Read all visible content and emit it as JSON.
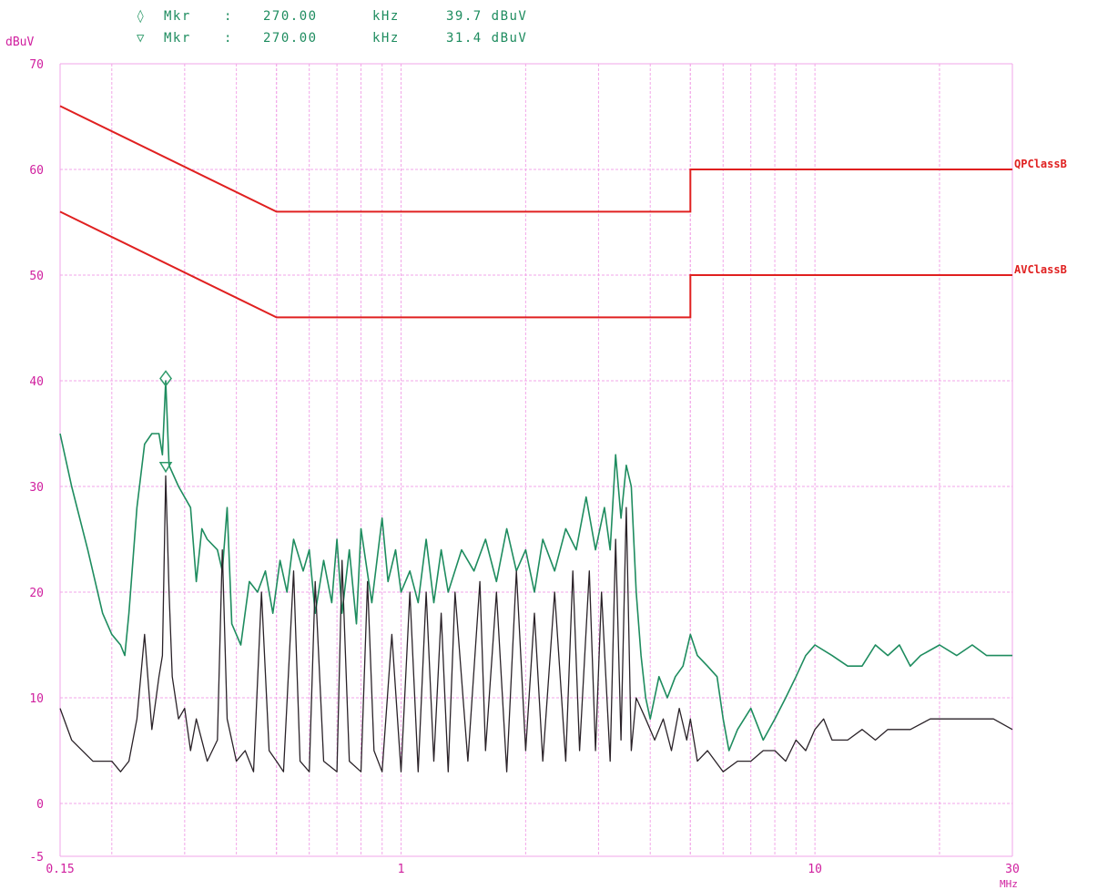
{
  "header": {
    "markers": [
      {
        "symbol": "◊",
        "label": "Mkr",
        "sep": ":",
        "freq": "270.00",
        "unit": "kHz",
        "level": "39.7 dBuV"
      },
      {
        "symbol": "▽",
        "label": "Mkr",
        "sep": ":",
        "freq": "270.00",
        "unit": "kHz",
        "level": "31.4 dBuV"
      }
    ]
  },
  "colors": {
    "grid": "#f2a6e8",
    "axis_text": "#d0209f",
    "limit": "#e02020",
    "qp_trace": "#1e8c5f",
    "av_trace": "#2a2228",
    "marker_text": "#1e8c5f",
    "marker_symbol": "#2e9a6a"
  },
  "chart_data": {
    "type": "line",
    "title": "",
    "ylabel": "dBuV",
    "xlabel": "MHz",
    "x_scale": "log",
    "xlim": [
      0.15,
      30
    ],
    "ylim": [
      -5,
      70
    ],
    "y_ticks": [
      -5,
      0,
      10,
      20,
      30,
      40,
      50,
      60,
      70
    ],
    "y_tick_labels": [
      "-5",
      "0",
      "10",
      "20",
      "30",
      "40",
      "50",
      "60",
      "70"
    ],
    "x_tick_labels": [
      {
        "value": 0.15,
        "label": "0.15"
      },
      {
        "value": 1,
        "label": "1"
      },
      {
        "value": 10,
        "label": "10"
      },
      {
        "value": 30,
        "label": "30"
      }
    ],
    "grid": true,
    "limits": [
      {
        "name": "QPClassB",
        "points": [
          [
            0.15,
            66
          ],
          [
            0.5,
            56
          ],
          [
            5,
            56
          ],
          [
            5,
            60
          ],
          [
            30,
            60
          ]
        ]
      },
      {
        "name": "AVClassB",
        "points": [
          [
            0.15,
            56
          ],
          [
            0.5,
            46
          ],
          [
            5,
            46
          ],
          [
            5,
            50
          ],
          [
            30,
            50
          ]
        ]
      }
    ],
    "series": [
      {
        "key": "qp",
        "points": [
          [
            0.15,
            35
          ],
          [
            0.16,
            30
          ],
          [
            0.175,
            24
          ],
          [
            0.19,
            18
          ],
          [
            0.2,
            16
          ],
          [
            0.21,
            15
          ],
          [
            0.215,
            14
          ],
          [
            0.22,
            18
          ],
          [
            0.23,
            28
          ],
          [
            0.24,
            34
          ],
          [
            0.25,
            35
          ],
          [
            0.26,
            35
          ],
          [
            0.265,
            33
          ],
          [
            0.27,
            40
          ],
          [
            0.275,
            32
          ],
          [
            0.29,
            30
          ],
          [
            0.31,
            28
          ],
          [
            0.32,
            21
          ],
          [
            0.33,
            26
          ],
          [
            0.34,
            25
          ],
          [
            0.36,
            24
          ],
          [
            0.37,
            22
          ],
          [
            0.38,
            28
          ],
          [
            0.39,
            17
          ],
          [
            0.41,
            15
          ],
          [
            0.43,
            21
          ],
          [
            0.45,
            20
          ],
          [
            0.47,
            22
          ],
          [
            0.49,
            18
          ],
          [
            0.51,
            23
          ],
          [
            0.53,
            20
          ],
          [
            0.55,
            25
          ],
          [
            0.58,
            22
          ],
          [
            0.6,
            24
          ],
          [
            0.62,
            18
          ],
          [
            0.65,
            23
          ],
          [
            0.68,
            19
          ],
          [
            0.7,
            25
          ],
          [
            0.72,
            18
          ],
          [
            0.75,
            24
          ],
          [
            0.78,
            17
          ],
          [
            0.8,
            26
          ],
          [
            0.85,
            19
          ],
          [
            0.9,
            27
          ],
          [
            0.93,
            21
          ],
          [
            0.97,
            24
          ],
          [
            1.0,
            20
          ],
          [
            1.05,
            22
          ],
          [
            1.1,
            19
          ],
          [
            1.15,
            25
          ],
          [
            1.2,
            19
          ],
          [
            1.25,
            24
          ],
          [
            1.3,
            20
          ],
          [
            1.4,
            24
          ],
          [
            1.5,
            22
          ],
          [
            1.6,
            25
          ],
          [
            1.7,
            21
          ],
          [
            1.8,
            26
          ],
          [
            1.9,
            22
          ],
          [
            2.0,
            24
          ],
          [
            2.1,
            20
          ],
          [
            2.2,
            25
          ],
          [
            2.35,
            22
          ],
          [
            2.5,
            26
          ],
          [
            2.65,
            24
          ],
          [
            2.8,
            29
          ],
          [
            2.95,
            24
          ],
          [
            3.1,
            28
          ],
          [
            3.2,
            24
          ],
          [
            3.3,
            33
          ],
          [
            3.4,
            27
          ],
          [
            3.5,
            32
          ],
          [
            3.6,
            30
          ],
          [
            3.7,
            20
          ],
          [
            3.8,
            14
          ],
          [
            3.9,
            10
          ],
          [
            4.0,
            8
          ],
          [
            4.2,
            12
          ],
          [
            4.4,
            10
          ],
          [
            4.6,
            12
          ],
          [
            4.8,
            13
          ],
          [
            5.0,
            16
          ],
          [
            5.2,
            14
          ],
          [
            5.5,
            13
          ],
          [
            5.8,
            12
          ],
          [
            6.0,
            8
          ],
          [
            6.2,
            5
          ],
          [
            6.5,
            7
          ],
          [
            7.0,
            9
          ],
          [
            7.5,
            6
          ],
          [
            8.0,
            8
          ],
          [
            8.5,
            10
          ],
          [
            9.0,
            12
          ],
          [
            9.5,
            14
          ],
          [
            10.0,
            15
          ],
          [
            11,
            14
          ],
          [
            12,
            13
          ],
          [
            13,
            13
          ],
          [
            14,
            15
          ],
          [
            15,
            14
          ],
          [
            16,
            15
          ],
          [
            17,
            13
          ],
          [
            18,
            14
          ],
          [
            20,
            15
          ],
          [
            22,
            14
          ],
          [
            24,
            15
          ],
          [
            26,
            14
          ],
          [
            28,
            14
          ],
          [
            30,
            14
          ]
        ]
      },
      {
        "key": "av",
        "points": [
          [
            0.15,
            9
          ],
          [
            0.16,
            6
          ],
          [
            0.18,
            4
          ],
          [
            0.2,
            4
          ],
          [
            0.21,
            3
          ],
          [
            0.22,
            4
          ],
          [
            0.23,
            8
          ],
          [
            0.24,
            16
          ],
          [
            0.25,
            7
          ],
          [
            0.26,
            12
          ],
          [
            0.265,
            14
          ],
          [
            0.27,
            31
          ],
          [
            0.275,
            20
          ],
          [
            0.28,
            12
          ],
          [
            0.29,
            8
          ],
          [
            0.3,
            9
          ],
          [
            0.31,
            5
          ],
          [
            0.32,
            8
          ],
          [
            0.34,
            4
          ],
          [
            0.36,
            6
          ],
          [
            0.37,
            24
          ],
          [
            0.38,
            8
          ],
          [
            0.4,
            4
          ],
          [
            0.42,
            5
          ],
          [
            0.44,
            3
          ],
          [
            0.46,
            20
          ],
          [
            0.48,
            5
          ],
          [
            0.5,
            4
          ],
          [
            0.52,
            3
          ],
          [
            0.55,
            22
          ],
          [
            0.57,
            4
          ],
          [
            0.6,
            3
          ],
          [
            0.62,
            21
          ],
          [
            0.65,
            4
          ],
          [
            0.7,
            3
          ],
          [
            0.72,
            23
          ],
          [
            0.75,
            4
          ],
          [
            0.8,
            3
          ],
          [
            0.83,
            21
          ],
          [
            0.86,
            5
          ],
          [
            0.9,
            3
          ],
          [
            0.95,
            16
          ],
          [
            1.0,
            3
          ],
          [
            1.05,
            20
          ],
          [
            1.1,
            3
          ],
          [
            1.15,
            20
          ],
          [
            1.2,
            4
          ],
          [
            1.25,
            18
          ],
          [
            1.3,
            3
          ],
          [
            1.35,
            20
          ],
          [
            1.45,
            4
          ],
          [
            1.55,
            21
          ],
          [
            1.6,
            5
          ],
          [
            1.7,
            20
          ],
          [
            1.8,
            3
          ],
          [
            1.9,
            22
          ],
          [
            2.0,
            5
          ],
          [
            2.1,
            18
          ],
          [
            2.2,
            4
          ],
          [
            2.35,
            20
          ],
          [
            2.5,
            4
          ],
          [
            2.6,
            22
          ],
          [
            2.7,
            5
          ],
          [
            2.85,
            22
          ],
          [
            2.95,
            5
          ],
          [
            3.05,
            20
          ],
          [
            3.2,
            4
          ],
          [
            3.3,
            25
          ],
          [
            3.4,
            6
          ],
          [
            3.5,
            28
          ],
          [
            3.6,
            5
          ],
          [
            3.7,
            10
          ],
          [
            3.9,
            8
          ],
          [
            4.1,
            6
          ],
          [
            4.3,
            8
          ],
          [
            4.5,
            5
          ],
          [
            4.7,
            9
          ],
          [
            4.9,
            6
          ],
          [
            5.0,
            8
          ],
          [
            5.2,
            4
          ],
          [
            5.5,
            5
          ],
          [
            6.0,
            3
          ],
          [
            6.5,
            4
          ],
          [
            7.0,
            4
          ],
          [
            7.5,
            5
          ],
          [
            8.0,
            5
          ],
          [
            8.5,
            4
          ],
          [
            9.0,
            6
          ],
          [
            9.5,
            5
          ],
          [
            10.0,
            7
          ],
          [
            10.5,
            8
          ],
          [
            11,
            6
          ],
          [
            12,
            6
          ],
          [
            13,
            7
          ],
          [
            14,
            6
          ],
          [
            15,
            7
          ],
          [
            17,
            7
          ],
          [
            19,
            8
          ],
          [
            21,
            8
          ],
          [
            24,
            8
          ],
          [
            27,
            8
          ],
          [
            30,
            7
          ]
        ]
      }
    ],
    "markers": [
      {
        "symbol": "diamond",
        "x": 0.27,
        "y": 39.7
      },
      {
        "symbol": "triangle-down",
        "x": 0.27,
        "y": 31.4
      }
    ]
  }
}
